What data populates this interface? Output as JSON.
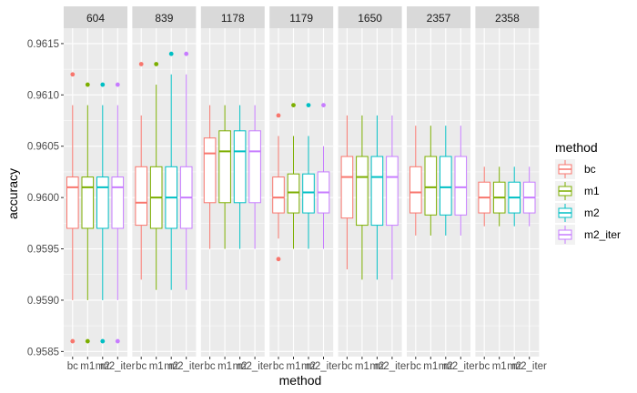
{
  "chart_data": {
    "type": "boxplot",
    "facet_var": "facet",
    "xlabel": "method",
    "ylabel": "accuracy",
    "ylim": [
      0.95845,
      0.96165
    ],
    "y_ticks": [
      0.9585,
      0.959,
      0.9595,
      0.96,
      0.9605,
      0.961,
      0.9615
    ],
    "y_tick_labels": [
      "0.9585",
      "0.9590",
      "0.9595",
      "0.9600",
      "0.9605",
      "0.9610",
      "0.9615"
    ],
    "methods": [
      "bc",
      "m1",
      "m2",
      "m2_iter"
    ],
    "legend": {
      "title": "method",
      "position": "right",
      "entries": [
        {
          "label": "bc",
          "color": "#F8766D"
        },
        {
          "label": "m1",
          "color": "#7CAE00"
        },
        {
          "label": "m2",
          "color": "#00BFC4"
        },
        {
          "label": "m2_iter",
          "color": "#C77CFF"
        }
      ]
    },
    "facets": [
      {
        "label": "604",
        "boxes": [
          {
            "min": 0.959,
            "q1": 0.9597,
            "median": 0.9601,
            "q3": 0.9602,
            "max": 0.9609,
            "outliers": [
              0.9612,
              0.9586
            ]
          },
          {
            "min": 0.959,
            "q1": 0.9597,
            "median": 0.9601,
            "q3": 0.9602,
            "max": 0.9609,
            "outliers": [
              0.9611,
              0.9586
            ]
          },
          {
            "min": 0.959,
            "q1": 0.9597,
            "median": 0.9601,
            "q3": 0.9602,
            "max": 0.9609,
            "outliers": [
              0.9611,
              0.9586
            ]
          },
          {
            "min": 0.959,
            "q1": 0.9597,
            "median": 0.9601,
            "q3": 0.9602,
            "max": 0.9609,
            "outliers": [
              0.9611,
              0.9586
            ]
          }
        ]
      },
      {
        "label": "839",
        "boxes": [
          {
            "min": 0.9592,
            "q1": 0.95973,
            "median": 0.95995,
            "q3": 0.9603,
            "max": 0.9608,
            "outliers": [
              0.9613
            ]
          },
          {
            "min": 0.9591,
            "q1": 0.9597,
            "median": 0.96,
            "q3": 0.9603,
            "max": 0.9611,
            "outliers": [
              0.9613
            ]
          },
          {
            "min": 0.9591,
            "q1": 0.9597,
            "median": 0.96,
            "q3": 0.9603,
            "max": 0.9612,
            "outliers": [
              0.9614
            ]
          },
          {
            "min": 0.9591,
            "q1": 0.9597,
            "median": 0.96,
            "q3": 0.9603,
            "max": 0.9612,
            "outliers": [
              0.9614
            ]
          }
        ]
      },
      {
        "label": "1178",
        "boxes": [
          {
            "min": 0.9595,
            "q1": 0.95995,
            "median": 0.96043,
            "q3": 0.96058,
            "max": 0.9609,
            "outliers": []
          },
          {
            "min": 0.9595,
            "q1": 0.95995,
            "median": 0.96045,
            "q3": 0.96065,
            "max": 0.9609,
            "outliers": []
          },
          {
            "min": 0.9595,
            "q1": 0.95995,
            "median": 0.96045,
            "q3": 0.96065,
            "max": 0.9609,
            "outliers": []
          },
          {
            "min": 0.9595,
            "q1": 0.95995,
            "median": 0.96045,
            "q3": 0.96065,
            "max": 0.9609,
            "outliers": []
          }
        ]
      },
      {
        "label": "1179",
        "boxes": [
          {
            "min": 0.9596,
            "q1": 0.95985,
            "median": 0.96,
            "q3": 0.9602,
            "max": 0.9606,
            "outliers": [
              0.9608,
              0.9594
            ]
          },
          {
            "min": 0.9595,
            "q1": 0.95985,
            "median": 0.96005,
            "q3": 0.96023,
            "max": 0.9606,
            "outliers": [
              0.9609
            ]
          },
          {
            "min": 0.9595,
            "q1": 0.95985,
            "median": 0.96005,
            "q3": 0.96023,
            "max": 0.9606,
            "outliers": [
              0.9609
            ]
          },
          {
            "min": 0.9595,
            "q1": 0.95985,
            "median": 0.96005,
            "q3": 0.96025,
            "max": 0.9605,
            "outliers": [
              0.9609
            ]
          }
        ]
      },
      {
        "label": "1650",
        "boxes": [
          {
            "min": 0.9593,
            "q1": 0.9598,
            "median": 0.9602,
            "q3": 0.9604,
            "max": 0.9608,
            "outliers": []
          },
          {
            "min": 0.9592,
            "q1": 0.95973,
            "median": 0.9602,
            "q3": 0.9604,
            "max": 0.9608,
            "outliers": []
          },
          {
            "min": 0.9592,
            "q1": 0.95973,
            "median": 0.9602,
            "q3": 0.9604,
            "max": 0.9608,
            "outliers": []
          },
          {
            "min": 0.9592,
            "q1": 0.95973,
            "median": 0.9602,
            "q3": 0.9604,
            "max": 0.9608,
            "outliers": []
          }
        ]
      },
      {
        "label": "2357",
        "boxes": [
          {
            "min": 0.95963,
            "q1": 0.95985,
            "median": 0.96005,
            "q3": 0.9603,
            "max": 0.9607,
            "outliers": []
          },
          {
            "min": 0.95963,
            "q1": 0.95983,
            "median": 0.9601,
            "q3": 0.9604,
            "max": 0.9607,
            "outliers": []
          },
          {
            "min": 0.95963,
            "q1": 0.95983,
            "median": 0.9601,
            "q3": 0.9604,
            "max": 0.9607,
            "outliers": []
          },
          {
            "min": 0.95963,
            "q1": 0.95983,
            "median": 0.9601,
            "q3": 0.9604,
            "max": 0.9607,
            "outliers": []
          }
        ]
      },
      {
        "label": "2358",
        "boxes": [
          {
            "min": 0.95972,
            "q1": 0.95985,
            "median": 0.96,
            "q3": 0.96015,
            "max": 0.9603,
            "outliers": []
          },
          {
            "min": 0.95972,
            "q1": 0.95985,
            "median": 0.96,
            "q3": 0.96015,
            "max": 0.9603,
            "outliers": []
          },
          {
            "min": 0.95972,
            "q1": 0.95985,
            "median": 0.96,
            "q3": 0.96015,
            "max": 0.9603,
            "outliers": []
          },
          {
            "min": 0.95972,
            "q1": 0.95985,
            "median": 0.96,
            "q3": 0.96015,
            "max": 0.9603,
            "outliers": []
          }
        ]
      }
    ]
  }
}
